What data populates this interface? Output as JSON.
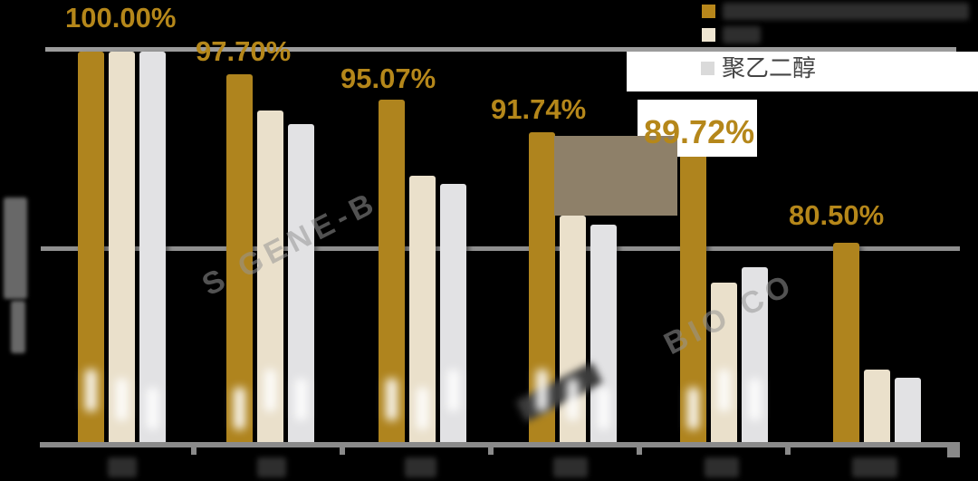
{
  "chart_data": {
    "type": "bar",
    "title": "",
    "categories": [
      "",
      "",
      "",
      "",
      "",
      ""
    ],
    "categories_redacted": true,
    "series": [
      {
        "name": "",
        "name_redacted": true,
        "color": "#af841e",
        "values": [
          100.0,
          97.7,
          95.07,
          91.74,
          89.72,
          80.5
        ]
      },
      {
        "name": "",
        "name_redacted": true,
        "color": "#eae0cb",
        "values": [
          100.0,
          94.0,
          87.3,
          83.3,
          76.4,
          67.6
        ]
      },
      {
        "name": "聚乙二醇",
        "color": "#e2e2e4",
        "values": [
          100.0,
          92.6,
          86.5,
          82.4,
          78.0,
          66.7
        ]
      }
    ],
    "data_labels": [
      "100.00%",
      "97.70%",
      "95.07%",
      "91.74%",
      "89.72%",
      "80.50%"
    ],
    "xlabel": "",
    "ylabel": "",
    "ylabel_redacted": true,
    "ylim": [
      60,
      100
    ],
    "gridlines_y": [
      60,
      80,
      100
    ],
    "grid": "horizontal",
    "legend_position": "top-right"
  },
  "legend": {
    "items": [
      {
        "label": "",
        "redacted": true,
        "swatch_color": "#b8871b"
      },
      {
        "label": "",
        "redacted": true,
        "swatch_color": "#efe6d2"
      },
      {
        "label": "聚乙二醇",
        "redacted": false,
        "swatch_color": "#dadada"
      }
    ]
  },
  "watermarks": [
    "S GENE-B",
    "BIO CO"
  ],
  "colors": {
    "background": "#000000",
    "bar_gold": "#af841e",
    "bar_cream": "#eae0cb",
    "bar_gray": "#e2e2e4",
    "label_gold": "#b5871a",
    "gridline": "#9c9c9c",
    "axis": "#8a8a8a",
    "redaction_block": "#8e8069",
    "legend_text": "#454545"
  }
}
